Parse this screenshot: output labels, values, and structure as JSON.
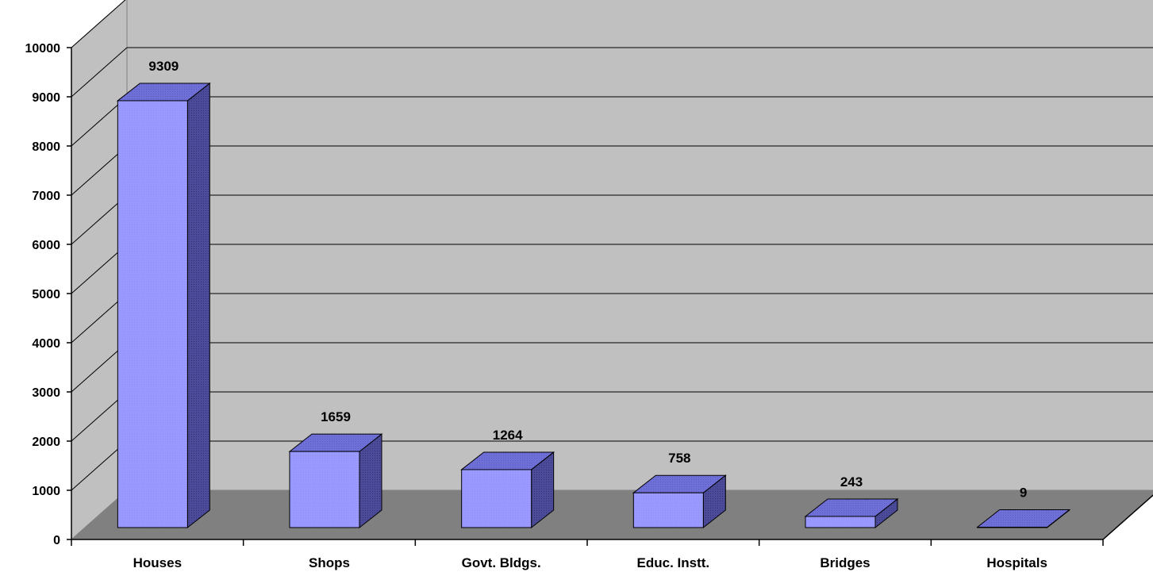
{
  "chart_data": {
    "type": "bar",
    "categories": [
      "Houses",
      "Shops",
      "Govt. Bldgs.",
      "Educ. Instt.",
      "Bridges",
      "Hospitals"
    ],
    "values": [
      9309,
      1659,
      1264,
      758,
      243,
      9
    ],
    "data_labels": [
      "9309",
      "1659",
      "1264",
      "758",
      "243",
      "9"
    ],
    "title": "",
    "xlabel": "",
    "ylabel": "",
    "ylim": [
      0,
      10000
    ],
    "yticks": [
      0,
      1000,
      2000,
      3000,
      4000,
      5000,
      6000,
      7000,
      8000,
      9000,
      10000
    ],
    "ytick_labels": [
      "0",
      "1000",
      "2000",
      "3000",
      "4000",
      "5000",
      "6000",
      "7000",
      "8000",
      "9000",
      "10000"
    ],
    "grid": true,
    "three_d": true,
    "legend": "none",
    "colors": {
      "bar_front": "#9999ff",
      "bar_top": "#6f6fd8",
      "bar_side": "#4b4b9a",
      "bar_outline": "#000000",
      "back_wall": "#c0c0c0",
      "side_wall": "#c0c0c0",
      "floor": "#808080",
      "gridline": "#000000"
    }
  }
}
